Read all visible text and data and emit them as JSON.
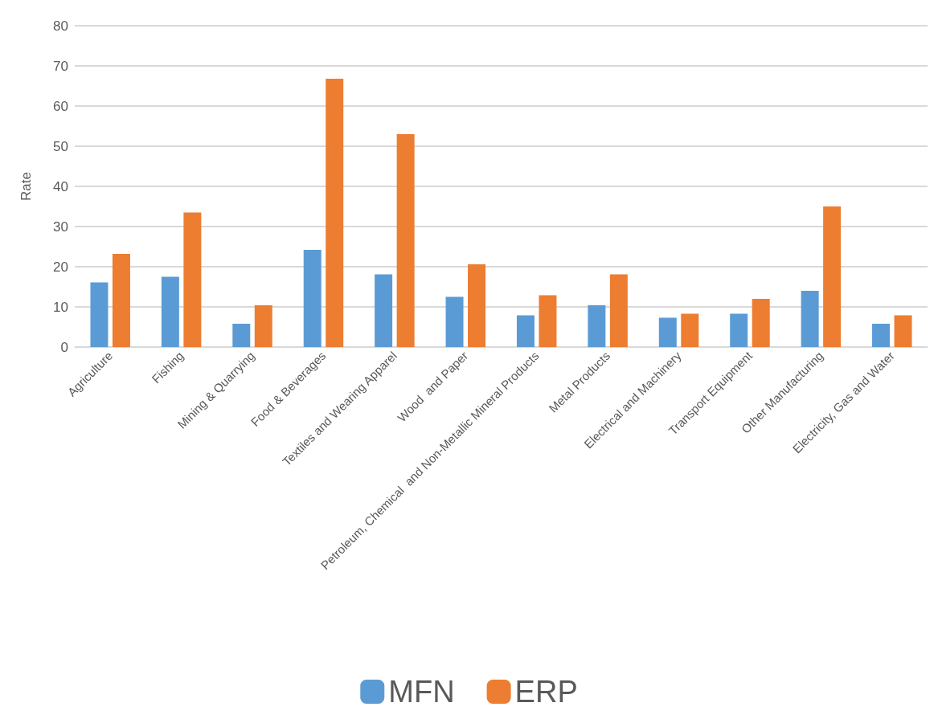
{
  "chart_data": {
    "type": "bar",
    "ylabel": "Rate",
    "categories": [
      "Agriculture",
      "Fishing",
      "Mining & Quarrying",
      "Food & Beverages",
      "Textiles and Wearing Apparel",
      "Wood  and Paper",
      "Petroleum, Chemical  and Non-Metallic Mineral Products",
      "Metal Products",
      "Electrical and Machinery",
      "Transport Equipment",
      "Other Manufacturing",
      "Electricity, Gas and Water"
    ],
    "series": [
      {
        "name": "MFN",
        "color": "#5b9bd5",
        "values": [
          16.1,
          17.5,
          5.8,
          24.2,
          18.1,
          12.5,
          7.9,
          10.4,
          7.3,
          8.3,
          14,
          5.8
        ]
      },
      {
        "name": "ERP",
        "color": "#ed7d31",
        "values": [
          23.2,
          33.5,
          10.4,
          66.8,
          53,
          20.6,
          12.9,
          18.1,
          8.3,
          12,
          35,
          7.9
        ]
      }
    ],
    "ylim": [
      0,
      80
    ],
    "yticks": [
      0,
      10,
      20,
      30,
      40,
      50,
      60,
      70,
      80
    ],
    "grid": "y",
    "legend": "bottom"
  }
}
